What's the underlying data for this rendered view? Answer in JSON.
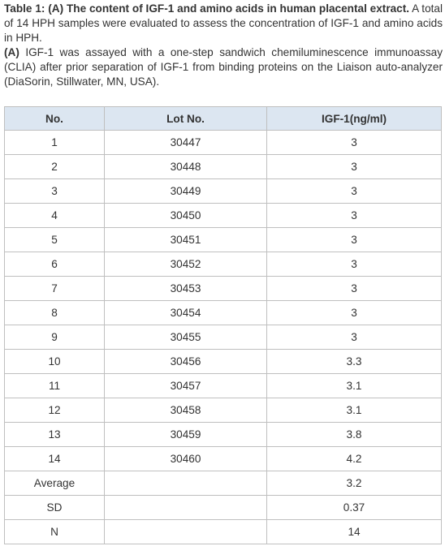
{
  "caption": {
    "p1_bold": "Table 1: (A) The content of IGF-1 and amino acids in human placental extract.",
    "p1_text": "A total of 14 HPH samples were evaluated to assess the concentration of IGF-1 and amino acids in HPH.",
    "p2_bold": "(A)",
    "p2_text": "IGF-1 was assayed with a one-step sandwich chemiluminescence immunoassay (CLIA) after prior separation of IGF-1 from binding proteins on the Liaison auto-analyzer (DiaSorin, Stillwater, MN, USA)."
  },
  "table": {
    "header": [
      "No.",
      "Lot No.",
      "IGF-1(ng/ml)"
    ],
    "rows": [
      [
        "1",
        "30447",
        "3"
      ],
      [
        "2",
        "30448",
        "3"
      ],
      [
        "3",
        "30449",
        "3"
      ],
      [
        "4",
        "30450",
        "3"
      ],
      [
        "5",
        "30451",
        "3"
      ],
      [
        "6",
        "30452",
        "3"
      ],
      [
        "7",
        "30453",
        "3"
      ],
      [
        "8",
        "30454",
        "3"
      ],
      [
        "9",
        "30455",
        "3"
      ],
      [
        "10",
        "30456",
        "3.3"
      ],
      [
        "11",
        "30457",
        "3.1"
      ],
      [
        "12",
        "30458",
        "3.1"
      ],
      [
        "13",
        "30459",
        "3.8"
      ],
      [
        "14",
        "30460",
        "4.2"
      ],
      [
        "Average",
        null,
        "3.2"
      ],
      [
        "SD",
        null,
        "0.37"
      ],
      [
        "N",
        null,
        "14"
      ]
    ]
  }
}
